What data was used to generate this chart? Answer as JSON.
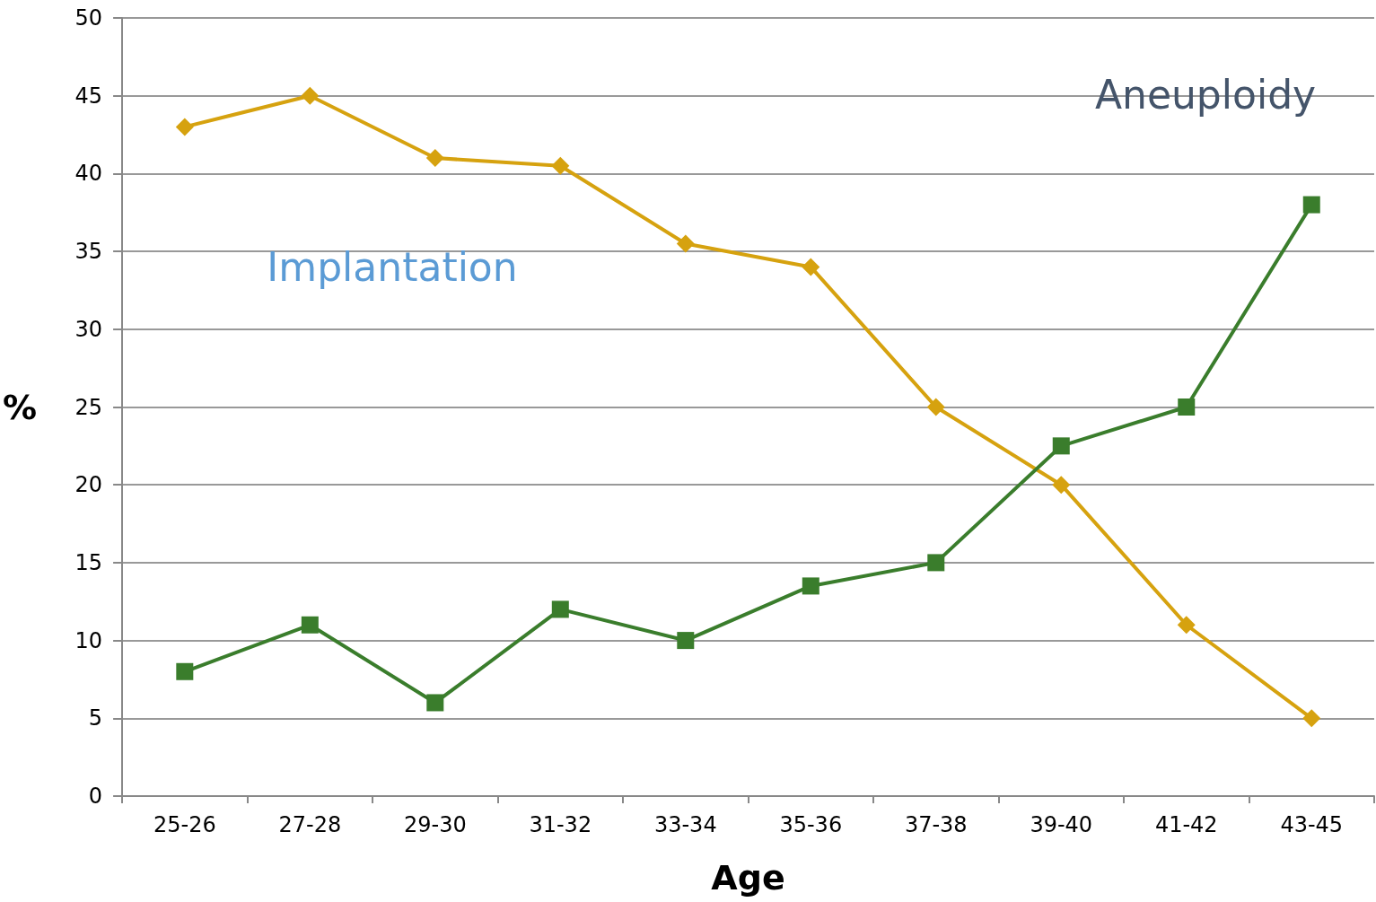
{
  "chart_data": {
    "type": "line",
    "xlabel": "Age",
    "ylabel": "%",
    "categories": [
      "25-26",
      "27-28",
      "29-30",
      "31-32",
      "33-34",
      "35-36",
      "37-38",
      "39-40",
      "41-42",
      "43-45"
    ],
    "series": [
      {
        "color": "#d6a20f",
        "marker": "diamond",
        "values": [
          43,
          45,
          41,
          40.5,
          35.5,
          34,
          25,
          20,
          11,
          5
        ]
      },
      {
        "color": "#3a7d2c",
        "marker": "square",
        "values": [
          8,
          11,
          6,
          12,
          10,
          13.5,
          15,
          22.5,
          25,
          38
        ]
      }
    ],
    "annotations": [
      "Implantation",
      "Aneuploidy"
    ],
    "ylim": [
      0,
      50
    ],
    "yticks": [
      0,
      5,
      10,
      15,
      20,
      25,
      30,
      35,
      40,
      45,
      50
    ],
    "grid": "y",
    "line_style": "solid"
  }
}
